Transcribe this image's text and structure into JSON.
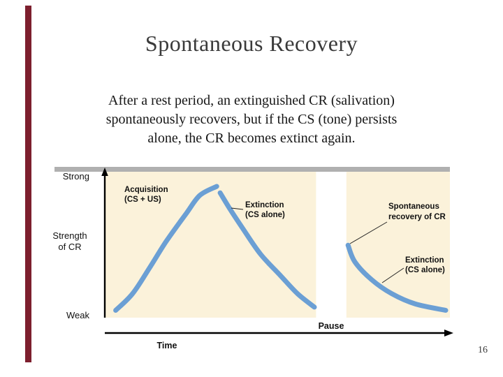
{
  "slide": {
    "title": "Spontaneous Recovery",
    "body_lines": [
      "After a rest period, an extinguished CR (salivation)",
      "spontaneously recovers, but if the CS (tone) persists",
      "alone, the CR becomes extinct again."
    ],
    "page_number": "16",
    "accent_bar_color": "#7d1f2e"
  },
  "figure": {
    "labels": {
      "strong": "Strong",
      "weak": "Weak",
      "y_axis_line1": "Strength",
      "y_axis_line2": "of CR",
      "time": "Time",
      "pause": "Pause"
    },
    "annotations": {
      "acquisition_line1": "Acquisition",
      "acquisition_line2": "(CS + US)",
      "extinction1_line1": "Extinction",
      "extinction1_line2": "(CS alone)",
      "spontaneous_line1": "Spontaneous",
      "spontaneous_line2": "recovery of CR",
      "extinction2_line1": "Extinction",
      "extinction2_line2": "(CS alone)"
    },
    "colors": {
      "curve": "#6b9fd4",
      "panel": "#fbf2da",
      "pause_band": "#ffffff",
      "top_bar": "#b0b0b0"
    }
  },
  "chart_data": {
    "type": "line",
    "title": "Spontaneous Recovery",
    "xlabel": "Time",
    "ylabel": "Strength of CR",
    "x_range": [
      0,
      1
    ],
    "y_range": [
      0,
      1
    ],
    "y_range_labels": [
      "Weak",
      "Strong"
    ],
    "grid": false,
    "legend": "none (inline annotations)",
    "series": [
      {
        "name": "Acquisition (CS + US)",
        "points": [
          [
            0.02,
            0.03
          ],
          [
            0.07,
            0.16
          ],
          [
            0.12,
            0.36
          ],
          [
            0.17,
            0.57
          ],
          [
            0.23,
            0.79
          ],
          [
            0.27,
            0.93
          ],
          [
            0.32,
            1.0
          ]
        ]
      },
      {
        "name": "Extinction (CS alone)",
        "points": [
          [
            0.33,
            0.95
          ],
          [
            0.36,
            0.82
          ],
          [
            0.4,
            0.66
          ],
          [
            0.45,
            0.47
          ],
          [
            0.51,
            0.3
          ],
          [
            0.56,
            0.16
          ],
          [
            0.61,
            0.055
          ]
        ]
      },
      {
        "name": "Spontaneous recovery of CR, then Extinction (CS alone)",
        "points": [
          [
            0.71,
            0.54
          ],
          [
            0.73,
            0.41
          ],
          [
            0.78,
            0.27
          ],
          [
            0.84,
            0.16
          ],
          [
            0.91,
            0.08
          ],
          [
            1.0,
            0.03
          ]
        ]
      }
    ],
    "pause_interval_x": [
      0.615,
      0.705
    ],
    "annotations": [
      "Acquisition (CS + US)",
      "Extinction (CS alone)",
      "Spontaneous recovery of CR",
      "Extinction (CS alone)",
      "Pause"
    ]
  }
}
